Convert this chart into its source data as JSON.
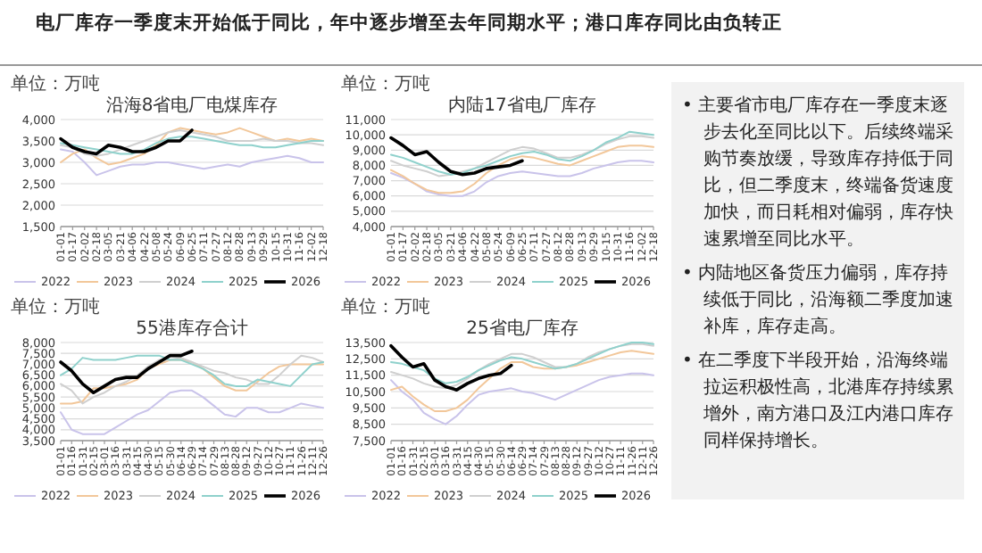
{
  "chart_data": [
    {
      "type": "line",
      "title": "沿海8省电厂电煤库存",
      "annotations": [
        "单位：万吨"
      ],
      "legend": "bottom",
      "grid": "y",
      "categories": [
        "01-01",
        "01-17",
        "02-02",
        "02-18",
        "03-05",
        "03-21",
        "04-06",
        "04-22",
        "05-08",
        "05-24",
        "06-09",
        "06-25",
        "07-11",
        "07-27",
        "08-12",
        "08-28",
        "09-13",
        "09-29",
        "10-15",
        "10-31",
        "11-16",
        "12-02",
        "12-18"
      ],
      "ylim": [
        1500,
        4000
      ],
      "yticks": [
        {
          "value": 1500,
          "label": "1,500"
        },
        {
          "value": 2000,
          "label": "2,000"
        },
        {
          "value": 2500,
          "label": "2,500"
        },
        {
          "value": 3000,
          "label": "3,000"
        },
        {
          "value": 3500,
          "label": "3,500"
        },
        {
          "value": 4000,
          "label": "4,000"
        }
      ],
      "series": [
        {
          "name": "2022",
          "color": "#c9c3ea",
          "values": [
            3300,
            3250,
            3000,
            2700,
            2800,
            2900,
            2950,
            2950,
            3000,
            3000,
            2950,
            2900,
            2850,
            2900,
            2950,
            2900,
            3000,
            3050,
            3100,
            3150,
            3100,
            3000,
            3000
          ]
        },
        {
          "name": "2023",
          "color": "#f2c79a",
          "values": [
            3000,
            3200,
            3300,
            3100,
            2950,
            3000,
            3100,
            3200,
            3400,
            3700,
            3800,
            3750,
            3700,
            3650,
            3700,
            3800,
            3700,
            3600,
            3500,
            3550,
            3500,
            3550,
            3500
          ]
        },
        {
          "name": "2024",
          "color": "#cfcfcf",
          "values": [
            3400,
            3350,
            3200,
            3150,
            3200,
            3300,
            3400,
            3500,
            3600,
            3700,
            3750,
            3700,
            3650,
            3600,
            3500,
            3500,
            3500,
            3550,
            3500,
            3500,
            3450,
            3450,
            3400
          ]
        },
        {
          "name": "2025",
          "color": "#8fd1cc",
          "values": [
            3450,
            3400,
            3350,
            3300,
            3250,
            3200,
            3200,
            3300,
            3450,
            3550,
            3600,
            3600,
            3550,
            3500,
            3450,
            3400,
            3400,
            3350,
            3350,
            3400,
            3450,
            3500,
            3500
          ]
        },
        {
          "name": "2026",
          "color": "#000000",
          "values": [
            3550,
            3350,
            3250,
            3200,
            3400,
            3350,
            3250,
            3250,
            3350,
            3500,
            3500,
            3750,
            null,
            null,
            null,
            null,
            null,
            null,
            null,
            null,
            null,
            null,
            null
          ]
        }
      ]
    },
    {
      "type": "line",
      "title": "内陆17省电厂库存",
      "annotations": [
        "单位：万吨"
      ],
      "legend": "bottom",
      "grid": "y",
      "categories": [
        "01-01",
        "01-17",
        "02-02",
        "02-18",
        "03-05",
        "03-21",
        "04-06",
        "04-22",
        "05-08",
        "05-24",
        "06-09",
        "06-25",
        "07-11",
        "07-27",
        "08-12",
        "08-28",
        "09-13",
        "09-29",
        "10-15",
        "10-31",
        "11-16",
        "12-02",
        "12-18"
      ],
      "ylim": [
        4000,
        11000
      ],
      "yticks": [
        {
          "value": 4000,
          "label": "4,000"
        },
        {
          "value": 5000,
          "label": "5,000"
        },
        {
          "value": 6000,
          "label": "6,000"
        },
        {
          "value": 7000,
          "label": "7,000"
        },
        {
          "value": 8000,
          "label": "8,000"
        },
        {
          "value": 9000,
          "label": "9,000"
        },
        {
          "value": 10000,
          "label": "10,000"
        },
        {
          "value": 11000,
          "label": "11,000"
        }
      ],
      "series": [
        {
          "name": "2022",
          "color": "#c9c3ea",
          "values": [
            7500,
            7200,
            6800,
            6300,
            6100,
            6000,
            6000,
            6300,
            6900,
            7300,
            7500,
            7600,
            7500,
            7400,
            7300,
            7300,
            7500,
            7800,
            8000,
            8200,
            8300,
            8300,
            8200
          ]
        },
        {
          "name": "2023",
          "color": "#f2c79a",
          "values": [
            7700,
            7300,
            6800,
            6400,
            6200,
            6200,
            6300,
            6800,
            7500,
            8000,
            8400,
            8600,
            8500,
            8300,
            8100,
            8000,
            8300,
            8600,
            8900,
            9200,
            9300,
            9300,
            9200
          ]
        },
        {
          "name": "2024",
          "color": "#cfcfcf",
          "values": [
            8300,
            8000,
            7800,
            7600,
            7300,
            7400,
            7600,
            7800,
            8200,
            8600,
            9000,
            9200,
            9100,
            8800,
            8500,
            8500,
            8700,
            9000,
            9400,
            9700,
            9900,
            9900,
            9800
          ]
        },
        {
          "name": "2025",
          "color": "#8fd1cc",
          "values": [
            8700,
            8500,
            8200,
            7900,
            7600,
            7400,
            7500,
            7800,
            8000,
            8300,
            8600,
            8800,
            8900,
            8700,
            8400,
            8300,
            8600,
            9000,
            9500,
            9800,
            10200,
            10100,
            10000
          ]
        },
        {
          "name": "2026",
          "color": "#000000",
          "values": [
            9800,
            9300,
            8700,
            8900,
            8200,
            7600,
            7400,
            7500,
            7800,
            7900,
            8000,
            8300,
            null,
            null,
            null,
            null,
            null,
            null,
            null,
            null,
            null,
            null,
            null
          ]
        }
      ]
    },
    {
      "type": "line",
      "title": "55港库存合计",
      "annotations": [
        "单位：万吨"
      ],
      "legend": "bottom",
      "grid": "y",
      "categories": [
        "01-01",
        "01-16",
        "01-31",
        "02-15",
        "03-01",
        "03-16",
        "03-31",
        "04-15",
        "04-30",
        "05-15",
        "05-30",
        "06-14",
        "06-29",
        "07-14",
        "07-29",
        "08-13",
        "08-28",
        "09-12",
        "09-27",
        "10-12",
        "10-27",
        "11-11",
        "11-26",
        "12-11",
        "12-26"
      ],
      "ylim": [
        3500,
        8000
      ],
      "yticks": [
        {
          "value": 3500,
          "label": "3,500"
        },
        {
          "value": 4000,
          "label": "4,000"
        },
        {
          "value": 4500,
          "label": "4,500"
        },
        {
          "value": 5000,
          "label": "5,000"
        },
        {
          "value": 5500,
          "label": "5,500"
        },
        {
          "value": 6000,
          "label": "6,000"
        },
        {
          "value": 6500,
          "label": "6,500"
        },
        {
          "value": 7000,
          "label": "7,000"
        },
        {
          "value": 7500,
          "label": "7,500"
        },
        {
          "value": 8000,
          "label": "8,000"
        }
      ],
      "series": [
        {
          "name": "2022",
          "color": "#c9c3ea",
          "values": [
            4800,
            4000,
            3800,
            3800,
            3800,
            4100,
            4400,
            4700,
            4900,
            5300,
            5700,
            5800,
            5800,
            5500,
            5100,
            4700,
            4600,
            5000,
            5000,
            4800,
            4800,
            5000,
            5200,
            5100,
            5000
          ]
        },
        {
          "name": "2023",
          "color": "#f2c79a",
          "values": [
            5200,
            5200,
            5300,
            5900,
            5900,
            6000,
            6100,
            6300,
            6800,
            7000,
            7200,
            7200,
            7100,
            6800,
            6400,
            6000,
            5800,
            5800,
            6200,
            6600,
            6900,
            7000,
            7000,
            7000,
            7000
          ]
        },
        {
          "name": "2024",
          "color": "#cfcfcf",
          "values": [
            6100,
            5800,
            5200,
            5500,
            5700,
            6000,
            6200,
            6500,
            6900,
            7200,
            7200,
            7300,
            7100,
            6900,
            6700,
            6600,
            6400,
            6300,
            6100,
            6100,
            6500,
            7000,
            7400,
            7300,
            7100
          ]
        },
        {
          "name": "2025",
          "color": "#8fd1cc",
          "values": [
            6500,
            6800,
            7300,
            7200,
            7200,
            7200,
            7300,
            7400,
            7400,
            7400,
            7200,
            7200,
            7000,
            6800,
            6500,
            6100,
            6000,
            6000,
            6300,
            6200,
            6100,
            6000,
            6500,
            7000,
            7100
          ]
        },
        {
          "name": "2026",
          "color": "#000000",
          "values": [
            7100,
            6700,
            6100,
            5700,
            6000,
            6300,
            6400,
            6400,
            6800,
            7100,
            7400,
            7400,
            7600,
            null,
            null,
            null,
            null,
            null,
            null,
            null,
            null,
            null,
            null,
            null,
            null
          ]
        }
      ]
    },
    {
      "type": "line",
      "title": "25省电厂库存",
      "annotations": [
        "单位：万吨"
      ],
      "legend": "bottom",
      "grid": "y",
      "categories": [
        "01-01",
        "01-16",
        "01-31",
        "02-15",
        "03-01",
        "03-16",
        "03-31",
        "04-15",
        "04-30",
        "05-15",
        "05-30",
        "06-14",
        "06-29",
        "07-14",
        "07-29",
        "08-13",
        "08-28",
        "09-12",
        "09-27",
        "10-12",
        "10-27",
        "11-11",
        "11-26",
        "12-11",
        "12-26"
      ],
      "ylim": [
        7500,
        13500
      ],
      "yticks": [
        {
          "value": 7500,
          "label": "7,500"
        },
        {
          "value": 8500,
          "label": "8,500"
        },
        {
          "value": 9500,
          "label": "9,500"
        },
        {
          "value": 10500,
          "label": "10,500"
        },
        {
          "value": 11500,
          "label": "11,500"
        },
        {
          "value": 12500,
          "label": "12,500"
        },
        {
          "value": 13500,
          "label": "13,500"
        }
      ],
      "series": [
        {
          "name": "2022",
          "color": "#c9c3ea",
          "values": [
            11200,
            10500,
            10000,
            9200,
            8800,
            8500,
            9000,
            9700,
            10300,
            10500,
            10600,
            10700,
            10500,
            10400,
            10200,
            10000,
            10300,
            10600,
            10900,
            11200,
            11400,
            11500,
            11600,
            11600,
            11500
          ]
        },
        {
          "name": "2023",
          "color": "#f2c79a",
          "values": [
            10600,
            10800,
            10200,
            9700,
            9300,
            9300,
            9500,
            10000,
            10700,
            11300,
            11900,
            12300,
            12300,
            12000,
            11900,
            11900,
            12000,
            12100,
            12300,
            12500,
            12700,
            12900,
            13000,
            12900,
            12800
          ]
        },
        {
          "name": "2024",
          "color": "#cfcfcf",
          "values": [
            11700,
            11500,
            11300,
            11000,
            10800,
            10700,
            10900,
            11300,
            11800,
            12200,
            12500,
            12800,
            12800,
            12600,
            12300,
            12000,
            12000,
            12200,
            12600,
            12900,
            13100,
            13300,
            13400,
            13400,
            13300
          ]
        },
        {
          "name": "2025",
          "color": "#8fd1cc",
          "values": [
            12300,
            12200,
            12000,
            11800,
            11300,
            11000,
            11100,
            11400,
            11800,
            12100,
            12400,
            12600,
            12500,
            12300,
            12100,
            11900,
            12000,
            12200,
            12500,
            12800,
            13100,
            13300,
            13500,
            13500,
            13400
          ]
        },
        {
          "name": "2026",
          "color": "#000000",
          "values": [
            13300,
            12600,
            12000,
            12200,
            11200,
            10800,
            10600,
            11000,
            11300,
            11500,
            11600,
            12100,
            null,
            null,
            null,
            null,
            null,
            null,
            null,
            null,
            null,
            null,
            null,
            null,
            null
          ]
        }
      ]
    },
    {
      "type": "other",
      "title": "电厂库存一季度末开始低于同比，年中逐步增至去年同期水平；港口库存同比由负转正",
      "annotations": [
        "•  主要省市电厂库存在一季度末逐步去化至同比以下。后续终端采购节奏放缓，导致库存持低于同比，但二季度末，终端备货速度加快，而日耗相对偏弱，库存快速累增至同比水平。",
        "•  内陆地区备货压力偏弱，库存持续低于同比，沿海额二季度加速补库，库存走高。",
        "•  在二季度下半段开始，沿海终端拉运积极性高，北港库存持续累增外，南方港口及江内港口库存同样保持增长。"
      ]
    }
  ]
}
